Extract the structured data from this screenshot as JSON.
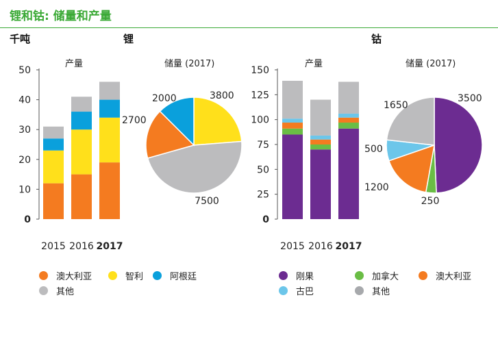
{
  "page": {
    "title": "锂和钴: 储量和产量",
    "unit": "千吨",
    "lithium_heading": "锂",
    "cobalt_heading": "钴"
  },
  "colors": {
    "orange": "#f47b20",
    "yellow": "#ffe01b",
    "blue": "#0aa0dc",
    "gray": "#bcbcbe",
    "purple": "#6c2c91",
    "green": "#6abd45",
    "lightblue": "#6cc6ea",
    "darkgray": "#a7a9ac",
    "title_green": "#3aa935"
  },
  "legends": {
    "lithium": [
      {
        "label": "澳大利亚",
        "color": "#f47b20"
      },
      {
        "label": "智利",
        "color": "#ffe01b"
      },
      {
        "label": "阿根廷",
        "color": "#0aa0dc"
      },
      {
        "label": "其他",
        "color": "#bcbcbe"
      }
    ],
    "cobalt": [
      {
        "label": "刚果",
        "color": "#6c2c91"
      },
      {
        "label": "加拿大",
        "color": "#6abd45"
      },
      {
        "label": "澳大利亚",
        "color": "#f47b20"
      },
      {
        "label": "古巴",
        "color": "#6cc6ea"
      },
      {
        "label": "其他",
        "color": "#a7a9ac"
      }
    ]
  },
  "chart_data": [
    {
      "type": "bar",
      "stacked": true,
      "title": "产量",
      "categories": [
        "2015",
        "2016",
        "2017"
      ],
      "bold_category": "2017",
      "ylim": [
        0,
        50
      ],
      "yticks": [
        "0",
        "10",
        "20",
        "30",
        "40",
        "50"
      ],
      "grid": false,
      "series": [
        {
          "name": "澳大利亚",
          "color": "#f47b20",
          "values": [
            12,
            15,
            19
          ]
        },
        {
          "name": "智利",
          "color": "#ffe01b",
          "values": [
            11,
            15,
            15
          ]
        },
        {
          "name": "阿根廷",
          "color": "#0aa0dc",
          "values": [
            4,
            6,
            6
          ]
        },
        {
          "name": "其他",
          "color": "#bcbcbe",
          "values": [
            4,
            5,
            6
          ]
        }
      ]
    },
    {
      "type": "pie",
      "title": "储量 (2017)",
      "slices": [
        {
          "name": "智利",
          "value": 3800,
          "label": "3800",
          "color": "#ffe01b"
        },
        {
          "name": "其他",
          "value": 7500,
          "label": "7500",
          "color": "#bcbcbe"
        },
        {
          "name": "澳大利亚",
          "value": 2700,
          "label": "2700",
          "color": "#f47b20"
        },
        {
          "name": "阿根廷",
          "value": 2000,
          "label": "2000",
          "color": "#0aa0dc"
        }
      ]
    },
    {
      "type": "bar",
      "stacked": true,
      "title": "产量",
      "categories": [
        "2015",
        "2016",
        "2017"
      ],
      "bold_category": "2017",
      "ylim": [
        0,
        150
      ],
      "yticks": [
        "0",
        "25",
        "50",
        "75",
        "100",
        "125",
        "150"
      ],
      "grid": false,
      "series": [
        {
          "name": "刚果",
          "color": "#6c2c91",
          "values": [
            85,
            70,
            91
          ]
        },
        {
          "name": "加拿大",
          "color": "#6abd45",
          "values": [
            6,
            5,
            6
          ]
        },
        {
          "name": "澳大利亚",
          "color": "#f47b20",
          "values": [
            6,
            5,
            5
          ]
        },
        {
          "name": "古巴",
          "color": "#6cc6ea",
          "values": [
            4,
            4,
            4
          ]
        },
        {
          "name": "其他",
          "color": "#bcbcbe",
          "values": [
            38,
            36,
            32
          ]
        }
      ]
    },
    {
      "type": "pie",
      "title": "储量 (2017)",
      "slices": [
        {
          "name": "刚果",
          "value": 3500,
          "label": "3500",
          "color": "#6c2c91"
        },
        {
          "name": "加拿大",
          "value": 250,
          "label": "250",
          "color": "#6abd45"
        },
        {
          "name": "澳大利亚",
          "value": 1200,
          "label": "1200",
          "color": "#f47b20"
        },
        {
          "name": "古巴",
          "value": 500,
          "label": "500",
          "color": "#6cc6ea"
        },
        {
          "name": "其他",
          "value": 1650,
          "label": "1650",
          "color": "#bcbcbe"
        }
      ]
    }
  ]
}
